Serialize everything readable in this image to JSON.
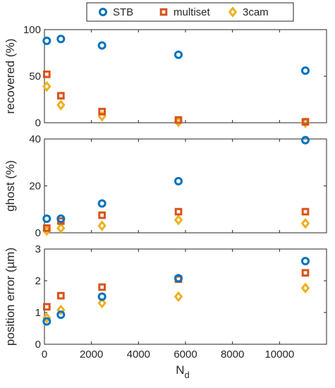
{
  "chart_data": {
    "type": "scatter",
    "legend_position": "top-center",
    "grid": false,
    "x": [
      100,
      700,
      2450,
      5700,
      11100
    ],
    "series_styles": [
      {
        "name": "STB",
        "marker": "circle",
        "color": "#0072BD"
      },
      {
        "name": "multiset",
        "marker": "square",
        "color": "#D95319"
      },
      {
        "name": "3cam",
        "marker": "diamond",
        "color": "#EDB120"
      }
    ],
    "xlabel": "N",
    "xlabel_subscript": "d",
    "xlim": [
      0,
      12000
    ],
    "xticks": [
      0,
      2000,
      4000,
      6000,
      8000,
      10000
    ],
    "panels": [
      {
        "ylabel": "recovered (%)",
        "ylim": [
          0,
          100
        ],
        "yticks": [
          0,
          50,
          100
        ],
        "series": [
          {
            "name": "STB",
            "values": [
              88,
              90,
              83,
              73,
              56
            ]
          },
          {
            "name": "multiset",
            "values": [
              52,
              29,
              12,
              3,
              1
            ]
          },
          {
            "name": "3cam",
            "values": [
              39,
              19,
              7,
              1,
              0
            ]
          }
        ]
      },
      {
        "ylabel": "ghost (%)",
        "ylim": [
          0,
          40
        ],
        "yticks": [
          0,
          20,
          40
        ],
        "series": [
          {
            "name": "STB",
            "values": [
              6,
              6,
              12.5,
              22,
              39.5
            ]
          },
          {
            "name": "multiset",
            "values": [
              2,
              5,
              7.5,
              9,
              9
            ]
          },
          {
            "name": "3cam",
            "values": [
              1,
              2,
              3,
              5.5,
              4
            ]
          }
        ]
      },
      {
        "ylabel": "position error (µm)",
        "ylim": [
          0,
          3
        ],
        "yticks": [
          0,
          1,
          2,
          3
        ],
        "series": [
          {
            "name": "STB",
            "values": [
              0.72,
              0.93,
              1.5,
              2.08,
              2.62
            ]
          },
          {
            "name": "multiset",
            "values": [
              1.18,
              1.53,
              1.8,
              2.05,
              2.25
            ]
          },
          {
            "name": "3cam",
            "values": [
              0.83,
              1.08,
              1.3,
              1.5,
              1.77
            ]
          }
        ]
      }
    ]
  }
}
